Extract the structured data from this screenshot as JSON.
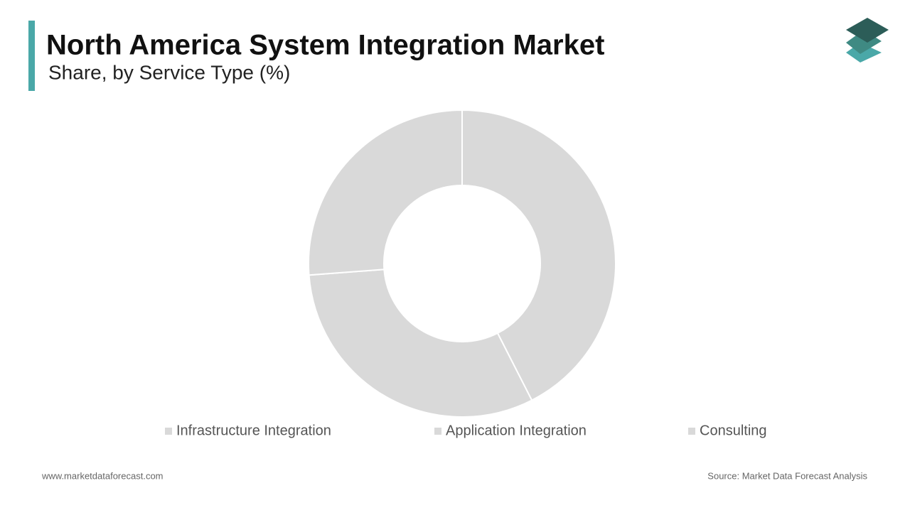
{
  "chart_data": {
    "type": "pie",
    "title": "North America System Integration Market",
    "subtitle": "Share, by Service Type (%)",
    "categories": [
      "Infrastructure Integration",
      "Application Integration",
      "Consulting"
    ],
    "values": [
      42.5,
      31.3,
      26.2
    ],
    "colors": [
      "#d9d9d9",
      "#d9d9d9",
      "#d9d9d9"
    ]
  },
  "footer": {
    "website": "www.marketdataforecast.com",
    "source": "Source: Market Data Forecast Analysis"
  }
}
